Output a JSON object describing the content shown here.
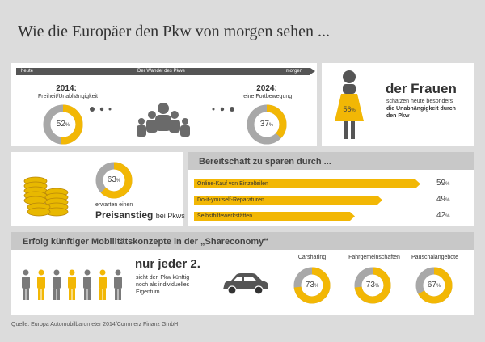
{
  "title": "Wie die Europäer den Pkw von morgen sehen ...",
  "timeline": {
    "left": "heute",
    "center": "Der Wandel des Pkws",
    "right": "morgen"
  },
  "year_left": {
    "year": "2014:",
    "desc": "Freiheit/Unabhängigkeit",
    "value": 52,
    "pct": "52",
    "unit": "%"
  },
  "year_right": {
    "year": "2024:",
    "desc": "reine Fortbewegung",
    "value": 37,
    "pct": "37",
    "unit": "%"
  },
  "women": {
    "value": 56,
    "pct": "56",
    "unit": "%",
    "headline": "der Frauen",
    "line1": "schätzen heute besonders",
    "line2": "die Unabhängigkeit durch",
    "line3": "den Pkw"
  },
  "price": {
    "value": 63,
    "pct": "63",
    "unit": "%",
    "line1": "erwarten einen",
    "line2": "Preisanstieg",
    "line3": "bei Pkws"
  },
  "savings": {
    "title": "Bereitschaft zu sparen durch ...",
    "items": [
      {
        "label": "Online-Kauf von Einzelteilen",
        "value": 59,
        "pct": "59",
        "unit": "%"
      },
      {
        "label": "Do-it-yourself-Reparaturen",
        "value": 49,
        "pct": "49",
        "unit": "%"
      },
      {
        "label": "Selbsthilfewerkstätten",
        "value": 42,
        "pct": "42",
        "unit": "%"
      }
    ]
  },
  "share": {
    "title": "Erfolg künftiger Mobilitätskonzepte in der „Shareconomy“",
    "headline": "nur jeder 2.",
    "line1": "sieht den Pkw künftig",
    "line2": "noch als individuelles",
    "line3": "Eigentum",
    "concepts": [
      {
        "label": "Carsharing",
        "value": 73,
        "pct": "73",
        "unit": "%"
      },
      {
        "label": "Fahrgemeinschaften",
        "value": 73,
        "pct": "73",
        "unit": "%"
      },
      {
        "label": "Pauschalangebote",
        "value": 67,
        "pct": "67",
        "unit": "%"
      }
    ]
  },
  "source": "Quelle: Europa Automobilbarometer 2014/Commerz Finanz GmbH",
  "colors": {
    "accent": "#f2b705",
    "gray": "#a8a8a8",
    "dark": "#555555"
  }
}
